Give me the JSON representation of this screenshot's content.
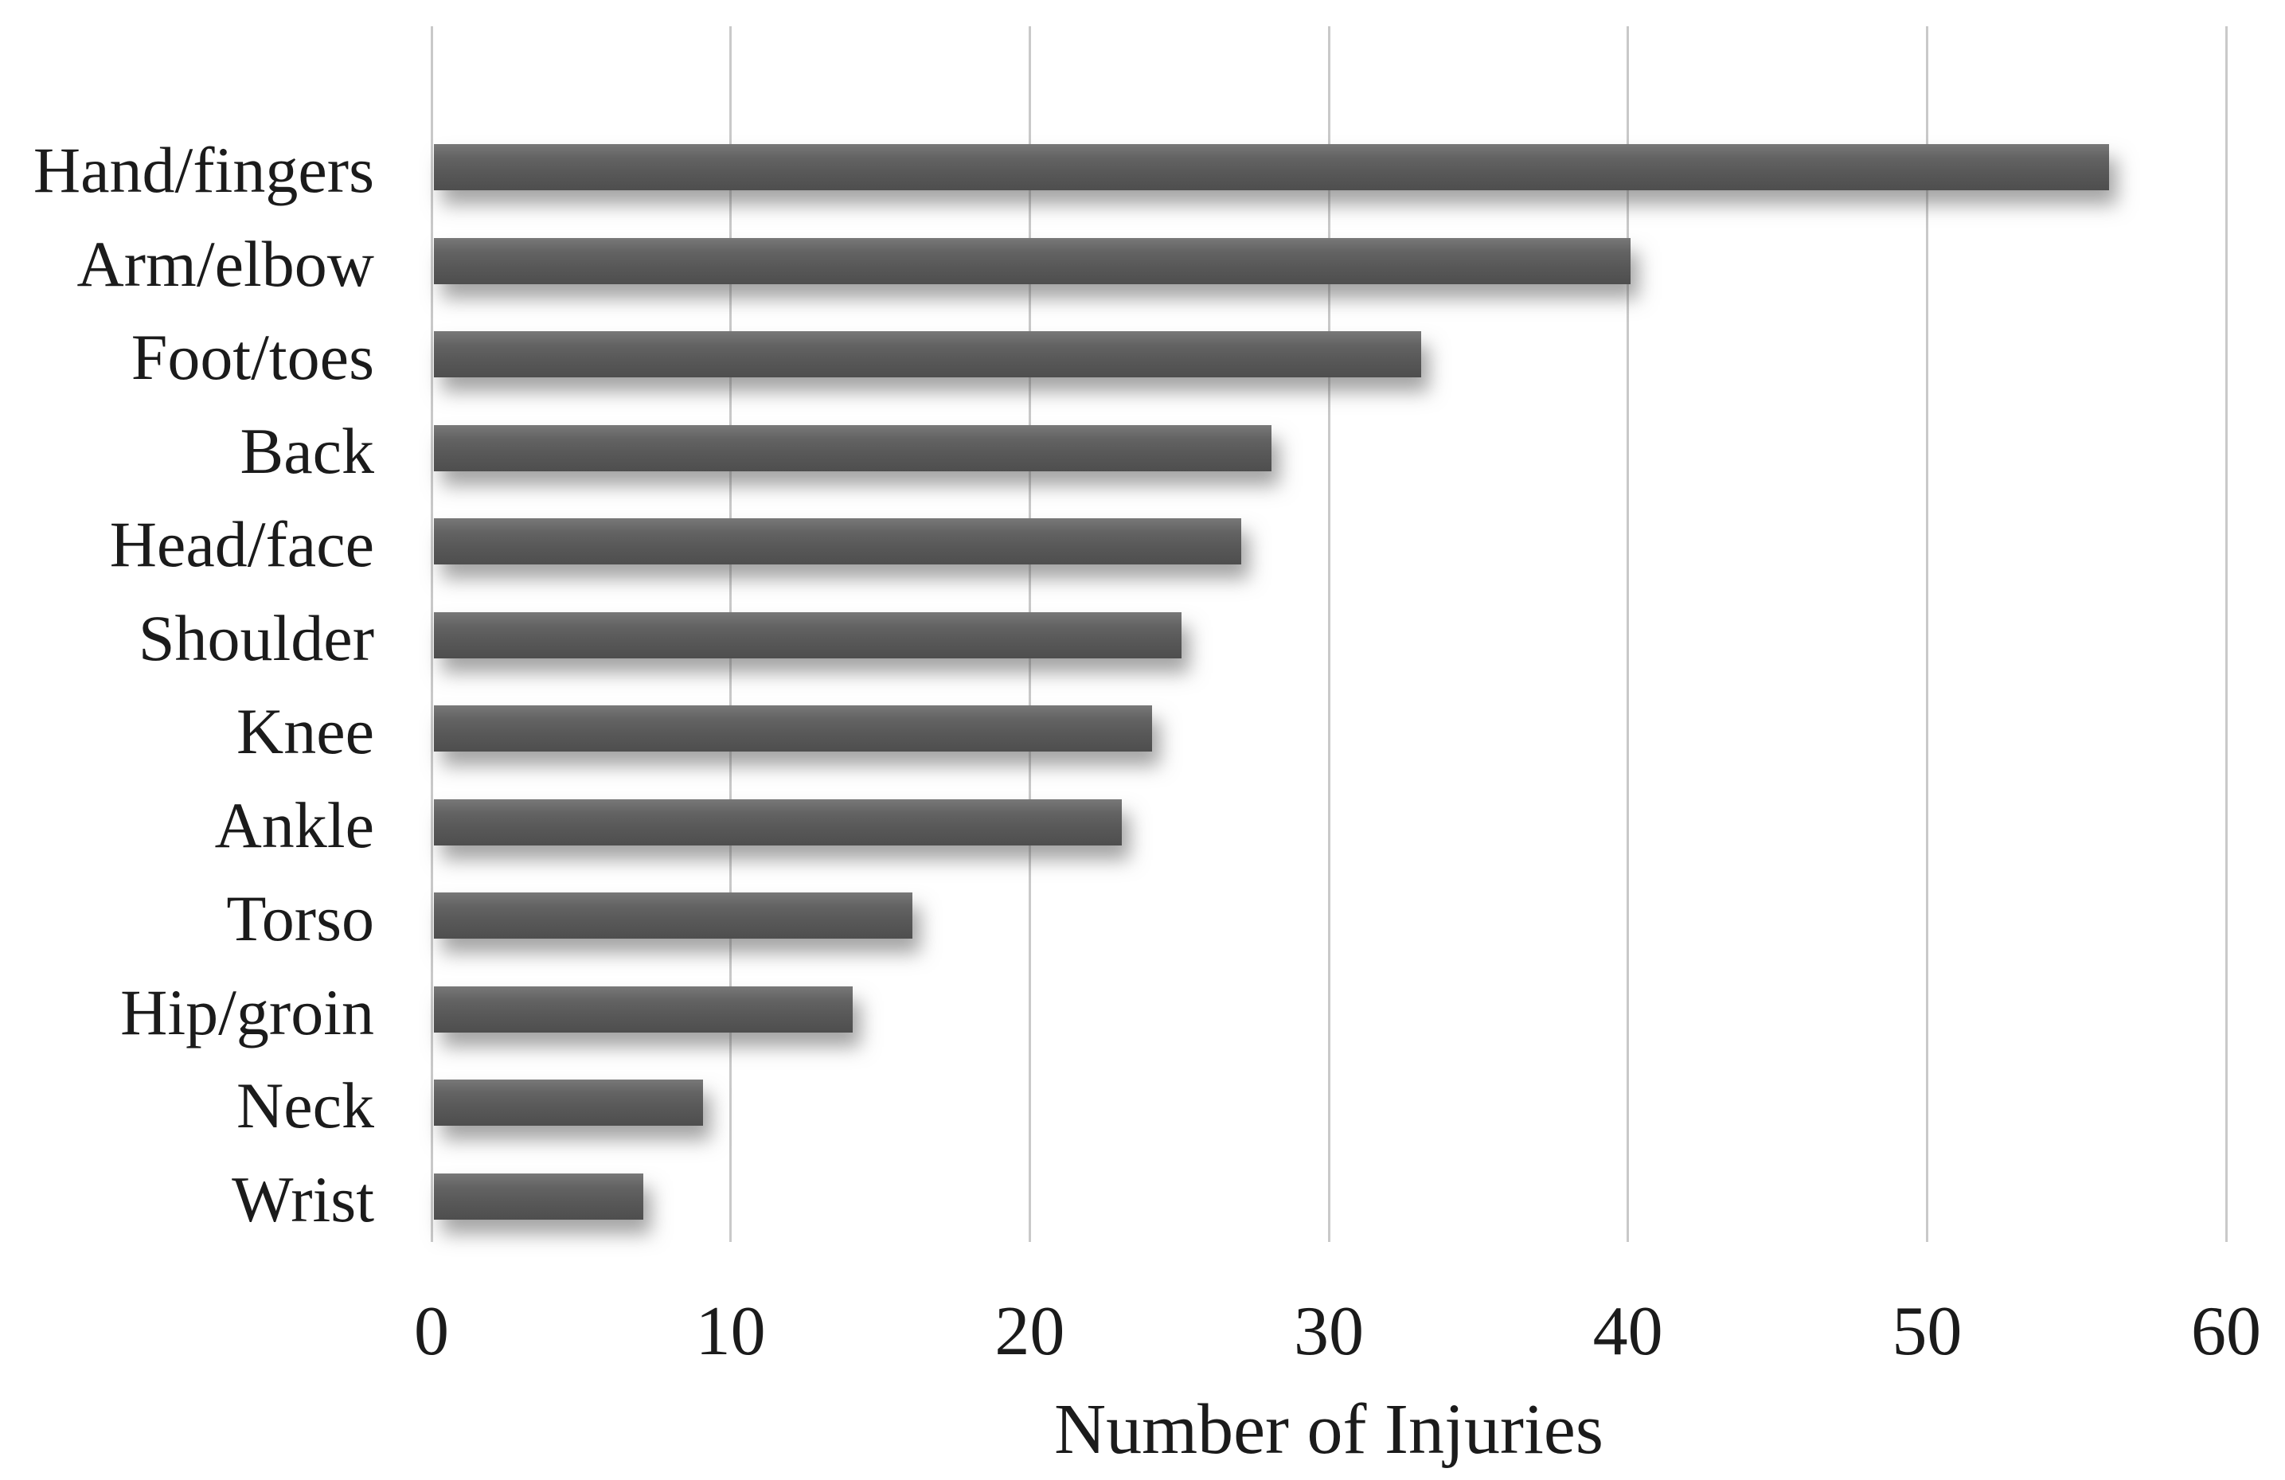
{
  "chart_data": {
    "type": "bar",
    "orientation": "horizontal",
    "categories": [
      "Hand/fingers",
      "Arm/elbow",
      "Foot/toes",
      "Back",
      "Head/face",
      "Shoulder",
      "Knee",
      "Ankle",
      "Torso",
      "Hip/groin",
      "Neck",
      "Wrist"
    ],
    "values": [
      56,
      40,
      33,
      28,
      27,
      25,
      24,
      23,
      16,
      14,
      9,
      7
    ],
    "title": "",
    "xlabel": "Number of Injuries",
    "ylabel": "",
    "xlim": [
      0,
      60
    ],
    "xticks": [
      0,
      10,
      20,
      30,
      40,
      50,
      60
    ],
    "grid": "vertical-gridlines-on",
    "legend_position": "none",
    "bar_color": "#5a5a5a",
    "gridline_color": "#c9c9c9",
    "text_color": "#1b1b1b",
    "background_color": "#ffffff"
  }
}
